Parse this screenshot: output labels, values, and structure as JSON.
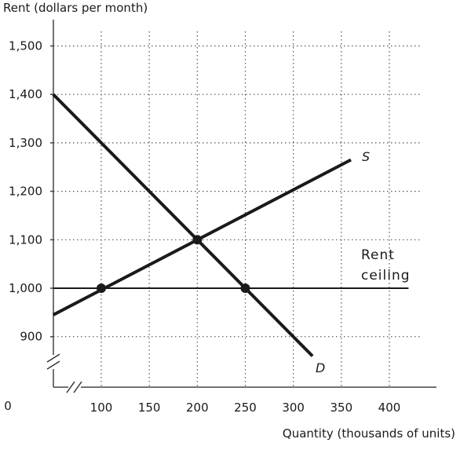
{
  "chart_data": {
    "type": "line",
    "ylabel": "Rent (dollars per month)",
    "xlabel": "Quantity (thousands of units)",
    "origin_label": "0",
    "x_ticks": [
      100,
      150,
      200,
      250,
      300,
      350,
      400
    ],
    "x_tick_labels": [
      "100",
      "150",
      "200",
      "250",
      "300",
      "350",
      "400"
    ],
    "y_ticks": [
      900,
      1000,
      1100,
      1200,
      1300,
      1400,
      1500
    ],
    "y_tick_labels": [
      "900",
      "1,000",
      "1,100",
      "1,200",
      "1,300",
      "1,400",
      "1,500"
    ],
    "xlim": [
      50,
      420
    ],
    "ylim": [
      850,
      1550
    ],
    "axis_breaks": true,
    "grid": "dotted",
    "series": [
      {
        "name": "S",
        "x": [
          50,
          360
        ],
        "y": [
          945,
          1265
        ]
      },
      {
        "name": "D",
        "x": [
          50,
          320
        ],
        "y": [
          1400,
          860
        ]
      },
      {
        "name": "Rent ceiling",
        "x": [
          50,
          420
        ],
        "y": [
          1000,
          1000
        ]
      }
    ],
    "points": [
      {
        "x": 100,
        "y": 1000
      },
      {
        "x": 200,
        "y": 1100
      },
      {
        "x": 250,
        "y": 1000
      }
    ],
    "annotations": [
      "S",
      "D",
      "Rent",
      "ceiling"
    ]
  }
}
